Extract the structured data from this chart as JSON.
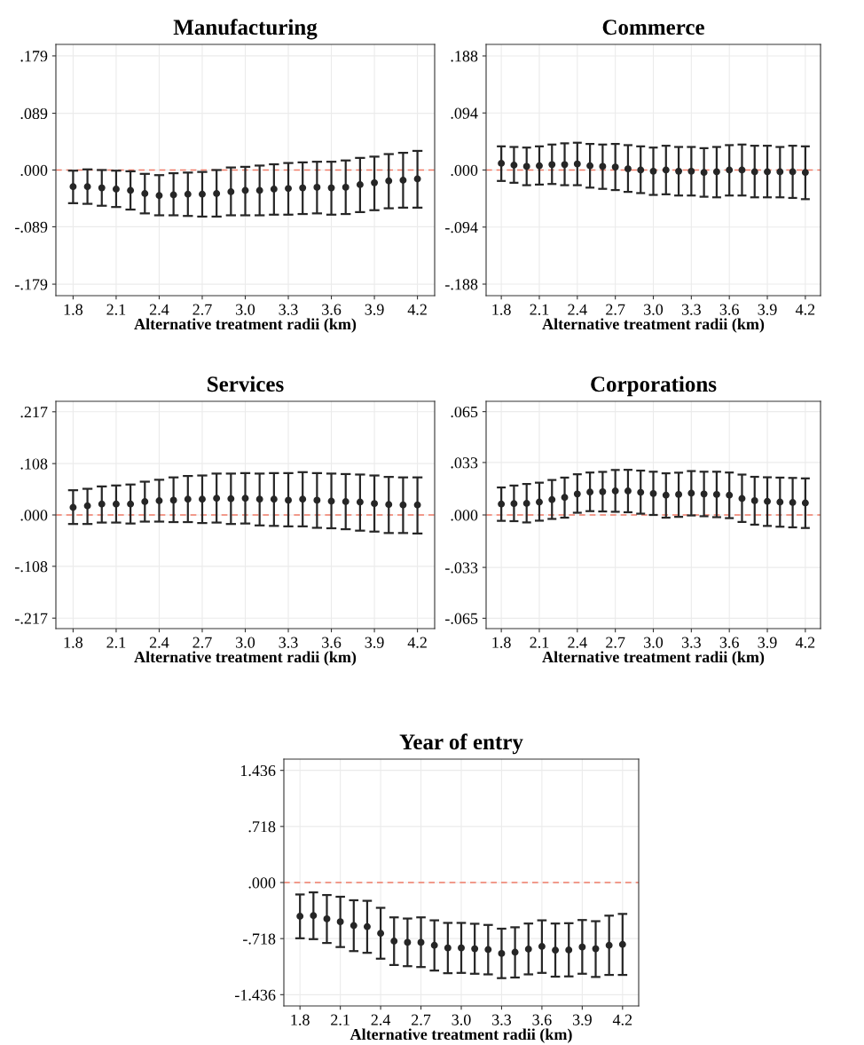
{
  "chart_data": [
    {
      "type": "scatter",
      "title": "Manufacturing",
      "xlabel": "Alternative treatment radii (km)",
      "x": [
        1.8,
        1.9,
        2.0,
        2.1,
        2.2,
        2.3,
        2.4,
        2.5,
        2.6,
        2.7,
        2.8,
        2.9,
        3.0,
        3.1,
        3.2,
        3.3,
        3.4,
        3.5,
        3.6,
        3.7,
        3.8,
        3.9,
        4.0,
        4.1,
        4.2
      ],
      "series": [
        {
          "color": "#262626",
          "values": [
            -0.026,
            -0.026,
            -0.028,
            -0.03,
            -0.032,
            -0.037,
            -0.04,
            -0.039,
            -0.038,
            -0.038,
            -0.037,
            -0.034,
            -0.032,
            -0.032,
            -0.03,
            -0.029,
            -0.028,
            -0.027,
            -0.028,
            -0.027,
            -0.023,
            -0.02,
            -0.017,
            -0.016,
            -0.014
          ],
          "errors": [
            [
              -0.052,
              -0.001
            ],
            [
              -0.053,
              0.001
            ],
            [
              -0.056,
              0.0
            ],
            [
              -0.058,
              -0.001
            ],
            [
              -0.062,
              -0.002
            ],
            [
              -0.068,
              -0.006
            ],
            [
              -0.071,
              -0.008
            ],
            [
              -0.071,
              -0.005
            ],
            [
              -0.072,
              -0.004
            ],
            [
              -0.073,
              -0.003
            ],
            [
              -0.073,
              0.0
            ],
            [
              -0.071,
              0.004
            ],
            [
              -0.071,
              0.005
            ],
            [
              -0.071,
              0.007
            ],
            [
              -0.07,
              0.009
            ],
            [
              -0.07,
              0.011
            ],
            [
              -0.069,
              0.012
            ],
            [
              -0.068,
              0.013
            ],
            [
              -0.07,
              0.013
            ],
            [
              -0.069,
              0.015
            ],
            [
              -0.066,
              0.019
            ],
            [
              -0.063,
              0.021
            ],
            [
              -0.06,
              0.025
            ],
            [
              -0.059,
              0.027
            ],
            [
              -0.059,
              0.03
            ]
          ]
        }
      ],
      "xlim": [
        1.68,
        4.32
      ],
      "xticks": [
        {
          "value": 1.8,
          "label": "1.8"
        },
        {
          "value": 2.1,
          "label": "2.1"
        },
        {
          "value": 2.4,
          "label": "2.4"
        },
        {
          "value": 2.7,
          "label": "2.7"
        },
        {
          "value": 3.0,
          "label": "3.0"
        },
        {
          "value": 3.3,
          "label": "3.3"
        },
        {
          "value": 3.6,
          "label": "3.6"
        },
        {
          "value": 3.9,
          "label": "3.9"
        },
        {
          "value": 4.2,
          "label": "4.2"
        }
      ],
      "ylim": [
        -0.197,
        0.197
      ],
      "yticks": [
        {
          "value": -0.179,
          "label": "-.179"
        },
        {
          "value": -0.089,
          "label": "-.089"
        },
        {
          "value": 0,
          "label": ".000"
        },
        {
          "value": 0.089,
          "label": ".089"
        },
        {
          "value": 0.179,
          "label": ".179"
        }
      ],
      "grid": true,
      "marker": "circle",
      "ref_lines": [
        {
          "axis": "y",
          "value": 0,
          "color": "#f07c68",
          "line_style": "dashed"
        }
      ]
    },
    {
      "type": "scatter",
      "title": "Commerce",
      "xlabel": "Alternative treatment radii (km)",
      "x": [
        1.8,
        1.9,
        2.0,
        2.1,
        2.2,
        2.3,
        2.4,
        2.5,
        2.6,
        2.7,
        2.8,
        2.9,
        3.0,
        3.1,
        3.2,
        3.3,
        3.4,
        3.5,
        3.6,
        3.7,
        3.8,
        3.9,
        4.0,
        4.1,
        4.2
      ],
      "series": [
        {
          "color": "#262626",
          "values": [
            0.011,
            0.008,
            0.006,
            0.007,
            0.009,
            0.009,
            0.01,
            0.007,
            0.006,
            0.005,
            0.002,
            0.0,
            -0.002,
            0.0,
            -0.002,
            -0.002,
            -0.004,
            -0.003,
            0.0,
            0.0,
            -0.003,
            -0.003,
            -0.003,
            -0.003,
            -0.004
          ],
          "errors": [
            [
              -0.018,
              0.039
            ],
            [
              -0.021,
              0.038
            ],
            [
              -0.025,
              0.037
            ],
            [
              -0.024,
              0.039
            ],
            [
              -0.023,
              0.042
            ],
            [
              -0.025,
              0.044
            ],
            [
              -0.025,
              0.045
            ],
            [
              -0.029,
              0.043
            ],
            [
              -0.031,
              0.042
            ],
            [
              -0.033,
              0.043
            ],
            [
              -0.036,
              0.041
            ],
            [
              -0.038,
              0.039
            ],
            [
              -0.041,
              0.037
            ],
            [
              -0.04,
              0.04
            ],
            [
              -0.042,
              0.038
            ],
            [
              -0.042,
              0.038
            ],
            [
              -0.044,
              0.036
            ],
            [
              -0.045,
              0.038
            ],
            [
              -0.042,
              0.041
            ],
            [
              -0.042,
              0.042
            ],
            [
              -0.045,
              0.04
            ],
            [
              -0.045,
              0.04
            ],
            [
              -0.045,
              0.038
            ],
            [
              -0.046,
              0.04
            ],
            [
              -0.048,
              0.039
            ]
          ]
        }
      ],
      "xlim": [
        1.68,
        4.32
      ],
      "xticks": [
        {
          "value": 1.8,
          "label": "1.8"
        },
        {
          "value": 2.1,
          "label": "2.1"
        },
        {
          "value": 2.4,
          "label": "2.4"
        },
        {
          "value": 2.7,
          "label": "2.7"
        },
        {
          "value": 3.0,
          "label": "3.0"
        },
        {
          "value": 3.3,
          "label": "3.3"
        },
        {
          "value": 3.6,
          "label": "3.6"
        },
        {
          "value": 3.9,
          "label": "3.9"
        },
        {
          "value": 4.2,
          "label": "4.2"
        }
      ],
      "ylim": [
        -0.207,
        0.207
      ],
      "yticks": [
        {
          "value": -0.188,
          "label": "-.188"
        },
        {
          "value": -0.094,
          "label": "-.094"
        },
        {
          "value": 0,
          "label": ".000"
        },
        {
          "value": 0.094,
          "label": ".094"
        },
        {
          "value": 0.188,
          "label": ".188"
        }
      ],
      "grid": true,
      "marker": "circle",
      "ref_lines": [
        {
          "axis": "y",
          "value": 0,
          "color": "#f07c68",
          "line_style": "dashed"
        }
      ]
    },
    {
      "type": "scatter",
      "title": "Services",
      "xlabel": "Alternative treatment radii (km)",
      "x": [
        1.8,
        1.9,
        2.0,
        2.1,
        2.2,
        2.3,
        2.4,
        2.5,
        2.6,
        2.7,
        2.8,
        2.9,
        3.0,
        3.1,
        3.2,
        3.3,
        3.4,
        3.5,
        3.6,
        3.7,
        3.8,
        3.9,
        4.0,
        4.1,
        4.2
      ],
      "series": [
        {
          "color": "#262626",
          "values": [
            0.016,
            0.019,
            0.023,
            0.023,
            0.023,
            0.028,
            0.03,
            0.031,
            0.033,
            0.033,
            0.035,
            0.034,
            0.035,
            0.033,
            0.033,
            0.031,
            0.033,
            0.031,
            0.029,
            0.028,
            0.027,
            0.024,
            0.022,
            0.021,
            0.021
          ],
          "errors": [
            [
              -0.019,
              0.052
            ],
            [
              -0.019,
              0.055
            ],
            [
              -0.016,
              0.06
            ],
            [
              -0.016,
              0.062
            ],
            [
              -0.018,
              0.064
            ],
            [
              -0.014,
              0.07
            ],
            [
              -0.014,
              0.074
            ],
            [
              -0.015,
              0.079
            ],
            [
              -0.015,
              0.082
            ],
            [
              -0.017,
              0.083
            ],
            [
              -0.016,
              0.087
            ],
            [
              -0.019,
              0.087
            ],
            [
              -0.018,
              0.088
            ],
            [
              -0.022,
              0.087
            ],
            [
              -0.023,
              0.088
            ],
            [
              -0.024,
              0.088
            ],
            [
              -0.024,
              0.09
            ],
            [
              -0.027,
              0.088
            ],
            [
              -0.028,
              0.087
            ],
            [
              -0.03,
              0.086
            ],
            [
              -0.033,
              0.085
            ],
            [
              -0.035,
              0.083
            ],
            [
              -0.038,
              0.08
            ],
            [
              -0.038,
              0.079
            ],
            [
              -0.039,
              0.079
            ]
          ]
        }
      ],
      "xlim": [
        1.68,
        4.32
      ],
      "xticks": [
        {
          "value": 1.8,
          "label": "1.8"
        },
        {
          "value": 2.1,
          "label": "2.1"
        },
        {
          "value": 2.4,
          "label": "2.4"
        },
        {
          "value": 2.7,
          "label": "2.7"
        },
        {
          "value": 3.0,
          "label": "3.0"
        },
        {
          "value": 3.3,
          "label": "3.3"
        },
        {
          "value": 3.6,
          "label": "3.6"
        },
        {
          "value": 3.9,
          "label": "3.9"
        },
        {
          "value": 4.2,
          "label": "4.2"
        }
      ],
      "ylim": [
        -0.239,
        0.239
      ],
      "yticks": [
        {
          "value": -0.217,
          "label": "-.217"
        },
        {
          "value": -0.108,
          "label": "-.108"
        },
        {
          "value": 0,
          "label": ".000"
        },
        {
          "value": 0.108,
          "label": ".108"
        },
        {
          "value": 0.217,
          "label": ".217"
        }
      ],
      "grid": true,
      "marker": "circle",
      "ref_lines": [
        {
          "axis": "y",
          "value": 0,
          "color": "#f07c68",
          "line_style": "dashed"
        }
      ]
    },
    {
      "type": "scatter",
      "title": "Corporations",
      "xlabel": "Alternative treatment radii (km)",
      "x": [
        1.8,
        1.9,
        2.0,
        2.1,
        2.2,
        2.3,
        2.4,
        2.5,
        2.6,
        2.7,
        2.8,
        2.9,
        3.0,
        3.1,
        3.2,
        3.3,
        3.4,
        3.5,
        3.6,
        3.7,
        3.8,
        3.9,
        4.0,
        4.1,
        4.2
      ],
      "series": [
        {
          "color": "#262626",
          "values": [
            0.0068,
            0.0071,
            0.0073,
            0.0081,
            0.0096,
            0.011,
            0.0132,
            0.0144,
            0.0146,
            0.0151,
            0.0151,
            0.0142,
            0.0135,
            0.0124,
            0.0129,
            0.0137,
            0.0132,
            0.0129,
            0.0124,
            0.0103,
            0.009,
            0.0085,
            0.0081,
            0.0078,
            0.0075
          ],
          "errors": [
            [
              -0.0037,
              0.0173
            ],
            [
              -0.0039,
              0.0185
            ],
            [
              -0.0047,
              0.0195
            ],
            [
              -0.0036,
              0.0203
            ],
            [
              -0.0025,
              0.022
            ],
            [
              -0.0017,
              0.0235
            ],
            [
              0.0014,
              0.0256
            ],
            [
              0.0024,
              0.0267
            ],
            [
              0.0022,
              0.0271
            ],
            [
              0.002,
              0.0283
            ],
            [
              0.0017,
              0.0284
            ],
            [
              0.0008,
              0.0279
            ],
            [
              0.0,
              0.0272
            ],
            [
              -0.0017,
              0.0262
            ],
            [
              -0.0012,
              0.0266
            ],
            [
              -0.0003,
              0.0276
            ],
            [
              -0.0008,
              0.0272
            ],
            [
              -0.0014,
              0.0272
            ],
            [
              -0.002,
              0.0267
            ],
            [
              -0.0044,
              0.0254
            ],
            [
              -0.0061,
              0.024
            ],
            [
              -0.0069,
              0.0237
            ],
            [
              -0.0074,
              0.0235
            ],
            [
              -0.0078,
              0.0233
            ],
            [
              -0.0082,
              0.023
            ]
          ]
        }
      ],
      "xlim": [
        1.68,
        4.32
      ],
      "xticks": [
        {
          "value": 1.8,
          "label": "1.8"
        },
        {
          "value": 2.1,
          "label": "2.1"
        },
        {
          "value": 2.4,
          "label": "2.4"
        },
        {
          "value": 2.7,
          "label": "2.7"
        },
        {
          "value": 3.0,
          "label": "3.0"
        },
        {
          "value": 3.3,
          "label": "3.3"
        },
        {
          "value": 3.6,
          "label": "3.6"
        },
        {
          "value": 3.9,
          "label": "3.9"
        },
        {
          "value": 4.2,
          "label": "4.2"
        }
      ],
      "ylim": [
        -0.0715,
        0.0715
      ],
      "yticks": [
        {
          "value": -0.065,
          "label": "-.065"
        },
        {
          "value": -0.033,
          "label": "-.033"
        },
        {
          "value": 0,
          "label": ".000"
        },
        {
          "value": 0.033,
          "label": ".033"
        },
        {
          "value": 0.065,
          "label": ".065"
        }
      ],
      "grid": true,
      "marker": "circle",
      "ref_lines": [
        {
          "axis": "y",
          "value": 0,
          "color": "#f07c68",
          "line_style": "dashed"
        }
      ]
    },
    {
      "type": "scatter",
      "title": "Year of entry",
      "xlabel": "Alternative treatment radii (km)",
      "x": [
        1.8,
        1.9,
        2.0,
        2.1,
        2.2,
        2.3,
        2.4,
        2.5,
        2.6,
        2.7,
        2.8,
        2.9,
        3.0,
        3.1,
        3.2,
        3.3,
        3.4,
        3.5,
        3.6,
        3.7,
        3.8,
        3.9,
        4.0,
        4.1,
        4.2
      ],
      "series": [
        {
          "color": "#262626",
          "values": [
            -0.432,
            -0.424,
            -0.465,
            -0.502,
            -0.551,
            -0.565,
            -0.651,
            -0.751,
            -0.766,
            -0.766,
            -0.804,
            -0.837,
            -0.837,
            -0.848,
            -0.859,
            -0.908,
            -0.893,
            -0.852,
            -0.819,
            -0.867,
            -0.863,
            -0.826,
            -0.848,
            -0.804,
            -0.792
          ],
          "errors": [
            [
              -0.714,
              -0.153
            ],
            [
              -0.725,
              -0.126
            ],
            [
              -0.774,
              -0.16
            ],
            [
              -0.826,
              -0.182
            ],
            [
              -0.878,
              -0.227
            ],
            [
              -0.9,
              -0.234
            ],
            [
              -0.975,
              -0.324
            ],
            [
              -1.056,
              -0.446
            ],
            [
              -1.071,
              -0.461
            ],
            [
              -1.082,
              -0.446
            ],
            [
              -1.127,
              -0.484
            ],
            [
              -1.161,
              -0.517
            ],
            [
              -1.157,
              -0.517
            ],
            [
              -1.168,
              -0.528
            ],
            [
              -1.176,
              -0.543
            ],
            [
              -1.224,
              -0.591
            ],
            [
              -1.216,
              -0.573
            ],
            [
              -1.176,
              -0.525
            ],
            [
              -1.157,
              -0.484
            ],
            [
              -1.205,
              -0.525
            ],
            [
              -1.202,
              -0.521
            ],
            [
              -1.168,
              -0.48
            ],
            [
              -1.209,
              -0.495
            ],
            [
              -1.183,
              -0.424
            ],
            [
              -1.183,
              -0.402
            ]
          ]
        }
      ],
      "xlim": [
        1.68,
        4.32
      ],
      "xticks": [
        {
          "value": 1.8,
          "label": "1.8"
        },
        {
          "value": 2.1,
          "label": "2.1"
        },
        {
          "value": 2.4,
          "label": "2.4"
        },
        {
          "value": 2.7,
          "label": "2.7"
        },
        {
          "value": 3.0,
          "label": "3.0"
        },
        {
          "value": 3.3,
          "label": "3.3"
        },
        {
          "value": 3.6,
          "label": "3.6"
        },
        {
          "value": 3.9,
          "label": "3.9"
        },
        {
          "value": 4.2,
          "label": "4.2"
        }
      ],
      "ylim": [
        -1.58,
        1.58
      ],
      "yticks": [
        {
          "value": -1.436,
          "label": "-1.436"
        },
        {
          "value": -0.718,
          "label": "-.718"
        },
        {
          "value": 0,
          "label": ".000"
        },
        {
          "value": 0.718,
          "label": ".718"
        },
        {
          "value": 1.436,
          "label": "1.436"
        }
      ],
      "grid": true,
      "marker": "circle",
      "ref_lines": [
        {
          "axis": "y",
          "value": 0,
          "color": "#f07c68",
          "line_style": "dashed"
        }
      ]
    }
  ]
}
